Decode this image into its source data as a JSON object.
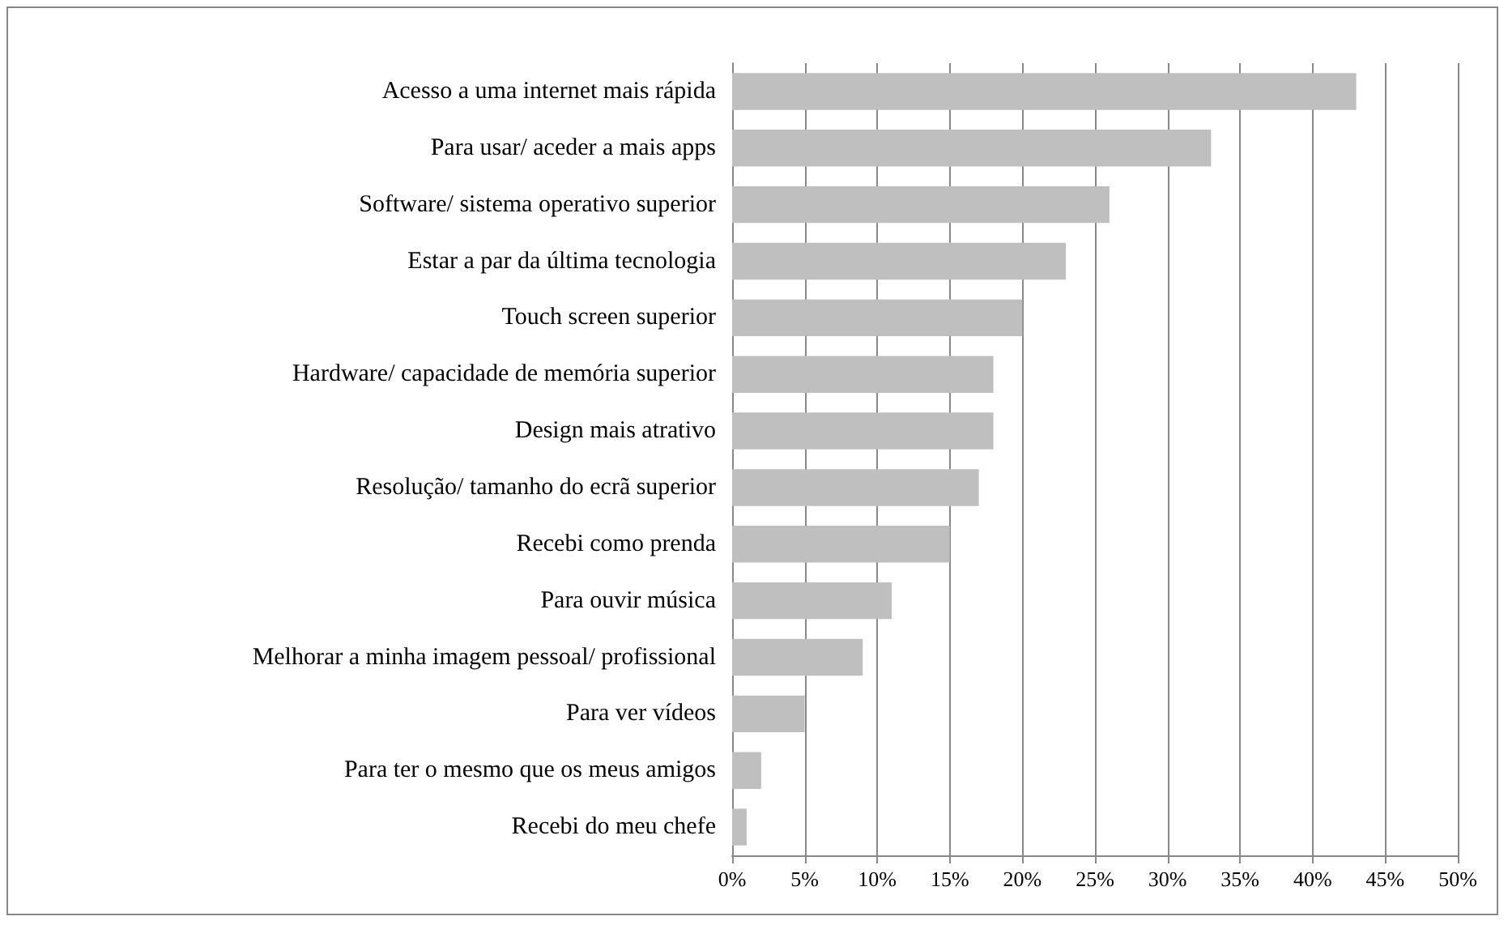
{
  "chart_data": {
    "type": "bar",
    "orientation": "horizontal",
    "categories": [
      "Acesso a uma internet mais rápida",
      "Para usar/ aceder a mais apps",
      "Software/ sistema operativo superior",
      "Estar a par da última tecnologia",
      "Touch screen superior",
      "Hardware/ capacidade de memória superior",
      "Design mais atrativo",
      "Resolução/ tamanho do ecrã superior",
      "Recebi como prenda",
      "Para ouvir música",
      "Melhorar a minha imagem pessoal/ profissional",
      "Para ver vídeos",
      "Para ter o mesmo que os meus amigos",
      "Recebi do meu chefe"
    ],
    "values": [
      43,
      33,
      26,
      23,
      20,
      18,
      18,
      17,
      15,
      11,
      9,
      5,
      2,
      1
    ],
    "color": "#bfbfbf",
    "xlim": [
      0,
      50
    ],
    "xticks": [
      {
        "value": 0,
        "label": "0%"
      },
      {
        "value": 5,
        "label": "5%"
      },
      {
        "value": 10,
        "label": "10%"
      },
      {
        "value": 15,
        "label": "15%"
      },
      {
        "value": 20,
        "label": "20%"
      },
      {
        "value": 25,
        "label": "25%"
      },
      {
        "value": 30,
        "label": "30%"
      },
      {
        "value": 35,
        "label": "35%"
      },
      {
        "value": 40,
        "label": "40%"
      },
      {
        "value": 45,
        "label": "45%"
      },
      {
        "value": 50,
        "label": "50%"
      }
    ],
    "grid": "x"
  }
}
